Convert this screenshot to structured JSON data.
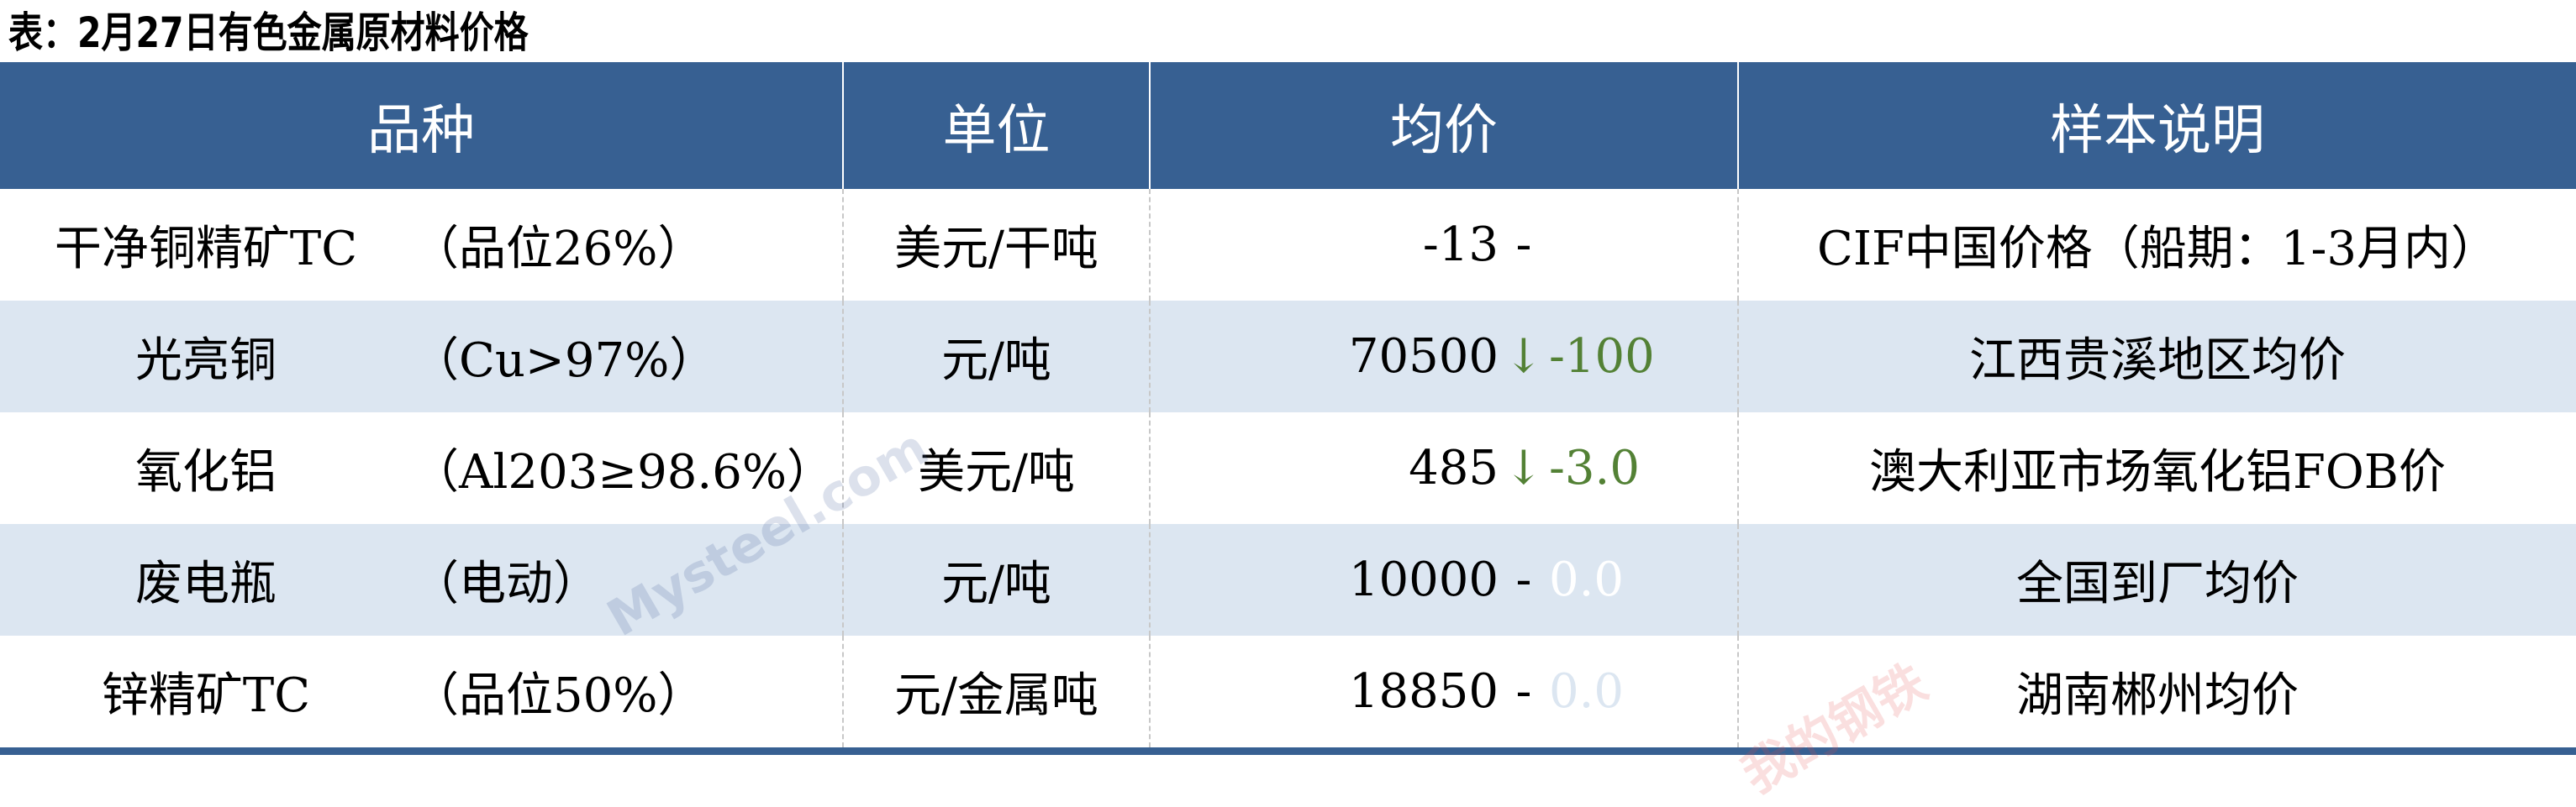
{
  "title": "表：2月27日有色金属原材料价格",
  "headers": [
    "品种",
    "单位",
    "均价",
    "样本说明"
  ],
  "rows": [
    {
      "name": "干净铜精矿TC",
      "spec": "（品位26%）",
      "unit": "美元/干吨",
      "price": "-13",
      "sign": "-",
      "change": "",
      "change_color": "#000000",
      "note": "CIF中国价格（船期：1-3月内）"
    },
    {
      "name": "光亮铜",
      "spec": "（Cu>97%）",
      "unit": "元/吨",
      "price": "70500",
      "sign": "↓",
      "change": "-100",
      "change_color": "#538135",
      "note": "江西贵溪地区均价"
    },
    {
      "name": "氧化铝",
      "spec": "（Al203≥98.6%）",
      "unit": "美元/吨",
      "price": "485",
      "sign": "↓",
      "change": "-3.0",
      "change_color": "#538135",
      "note": "澳大利亚市场氧化铝FOB价"
    },
    {
      "name": "废电瓶",
      "spec": "（电动）",
      "unit": "元/吨",
      "price": "10000",
      "sign": "-",
      "change": "0.0",
      "change_color": "#ffffff",
      "note": "全国到厂均价"
    },
    {
      "name": "锌精矿TC",
      "spec": "（品位50%）",
      "unit": "元/金属吨",
      "price": "18850",
      "sign": "-",
      "change": "0.0",
      "change_color": "#dce6f1",
      "note": "湖南郴州均价"
    }
  ],
  "colors": {
    "header_bg": "#376092",
    "alt_row": "#dce6f1",
    "down": "#538135"
  },
  "watermark": "我的钢铁 Mysteel.com"
}
